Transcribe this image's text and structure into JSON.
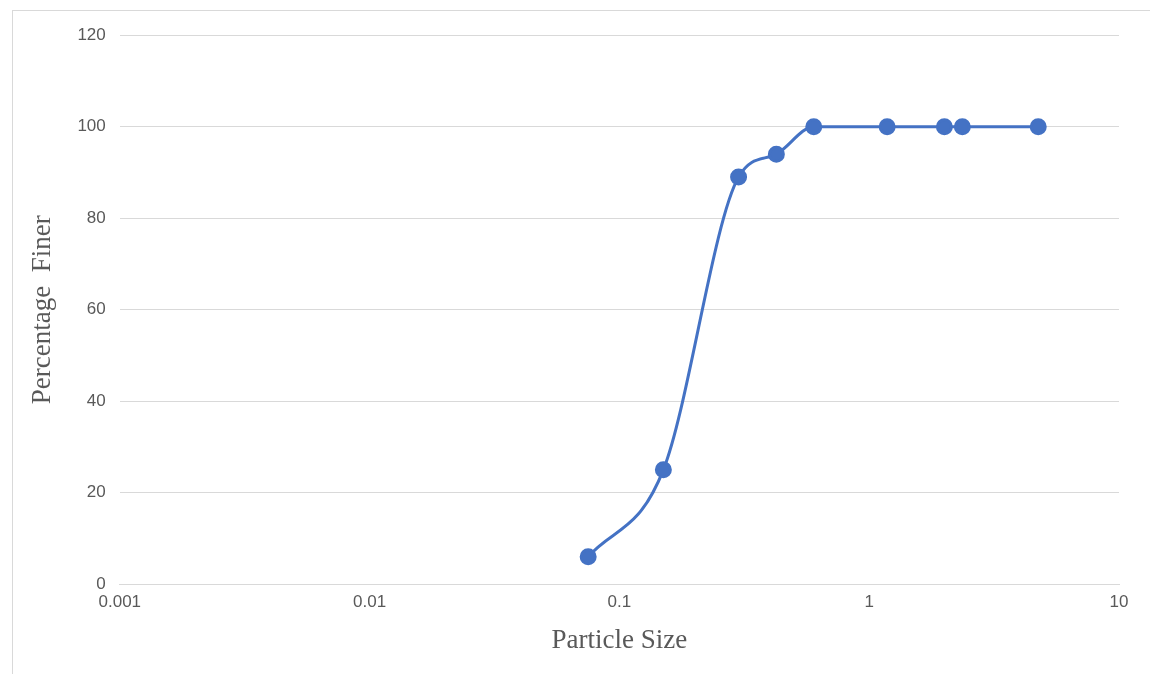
{
  "chart_data": {
    "type": "line",
    "xlabel": "Particle Size",
    "ylabel": "Percentage  Finer",
    "x": [
      0.075,
      0.15,
      0.3,
      0.425,
      0.6,
      1.18,
      2,
      2.36,
      4.75
    ],
    "series": [
      {
        "color": "#4472c4",
        "values": [
          6,
          25,
          89,
          94,
          100,
          100,
          100,
          100,
          100
        ]
      }
    ],
    "log": "x",
    "xlim": [
      0.001,
      10
    ],
    "xticks": [
      0.001,
      0.01,
      0.1,
      1,
      10
    ],
    "ylim": [
      0,
      120
    ],
    "yticks": [
      0,
      20,
      40,
      60,
      80,
      100,
      120
    ],
    "grid": "y",
    "legend": false,
    "marker": "circle",
    "line_style": "solid"
  }
}
